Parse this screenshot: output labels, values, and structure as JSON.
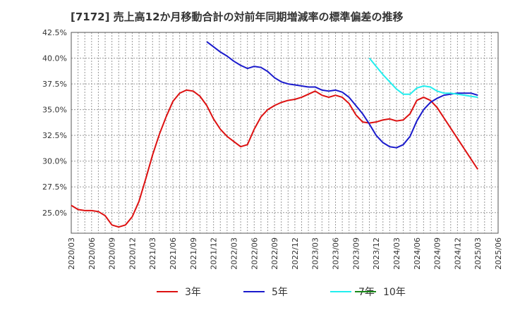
{
  "chart_data": {
    "type": "line",
    "title": "[7172]  売上高12か月移動合計の対前年同期増減率の標準偏差の推移",
    "xlabel": "",
    "ylabel": "",
    "ylim": [
      23.0,
      42.5
    ],
    "yticks": [
      "25.0%",
      "27.5%",
      "30.0%",
      "32.5%",
      "35.0%",
      "37.5%",
      "40.0%",
      "42.5%"
    ],
    "ytick_values": [
      25.0,
      27.5,
      30.0,
      32.5,
      35.0,
      37.5,
      40.0,
      42.5
    ],
    "xticks": [
      "2020/03",
      "2020/06",
      "2020/09",
      "2020/12",
      "2021/03",
      "2021/06",
      "2021/09",
      "2021/12",
      "2022/03",
      "2022/06",
      "2022/09",
      "2022/12",
      "2023/03",
      "2023/06",
      "2023/09",
      "2023/12",
      "2024/03",
      "2024/06",
      "2024/09",
      "2024/12",
      "2025/03",
      "2025/06"
    ],
    "grid": true,
    "legend_position": "bottom",
    "series": [
      {
        "name": "3年",
        "color": "#dd1111",
        "start": "2020/03",
        "values": [
          25.7,
          25.3,
          25.2,
          25.2,
          25.1,
          24.7,
          23.8,
          23.6,
          23.8,
          24.6,
          26.1,
          28.3,
          30.6,
          32.6,
          34.3,
          35.8,
          36.6,
          36.9,
          36.8,
          36.3,
          35.4,
          34.1,
          33.1,
          32.4,
          31.9,
          31.4,
          31.6,
          33.1,
          34.3,
          35.0,
          35.4,
          35.7,
          35.9,
          36.0,
          36.2,
          36.5,
          36.8,
          36.4,
          36.2,
          36.4,
          36.2,
          35.6,
          34.5,
          33.8,
          33.7,
          33.8,
          34.0,
          34.1,
          33.9,
          34.0,
          34.6,
          35.9,
          36.2,
          35.9,
          35.2,
          34.2,
          33.2,
          32.2,
          31.2,
          30.2,
          29.2
        ]
      },
      {
        "name": "5年",
        "color": "#1a1acc",
        "start": "2021/11",
        "values": [
          41.6,
          41.1,
          40.6,
          40.2,
          39.7,
          39.3,
          39.0,
          39.2,
          39.1,
          38.7,
          38.1,
          37.7,
          37.5,
          37.4,
          37.3,
          37.2,
          37.2,
          36.9,
          36.8,
          36.9,
          36.7,
          36.2,
          35.4,
          34.6,
          33.6,
          32.5,
          31.8,
          31.4,
          31.3,
          31.6,
          32.4,
          33.9,
          35.0,
          35.7,
          36.1,
          36.4,
          36.5,
          36.6,
          36.6,
          36.6,
          36.4
        ]
      },
      {
        "name": "7年",
        "color": "#22eeee",
        "start": "2023/11",
        "values": [
          40.0,
          39.2,
          38.4,
          37.7,
          37.0,
          36.5,
          36.5,
          37.1,
          37.3,
          37.2,
          36.8,
          36.6,
          36.6,
          36.5,
          36.4,
          36.3,
          36.2
        ]
      },
      {
        "name": "10年",
        "color": "#1a8a1a",
        "start": "2020/03",
        "values": []
      }
    ]
  }
}
